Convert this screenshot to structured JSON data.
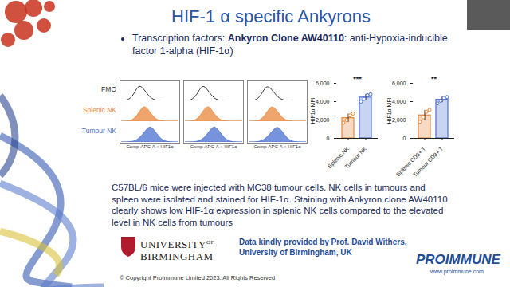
{
  "slide": {
    "title": "HIF-1 α specific Ankyrons",
    "bullet": {
      "lead": "Transcription factors: ",
      "bold": "Ankyron Clone AW40110",
      "rest": ": anti-Hypoxia-inducible factor 1-alpha (HIF-1α)"
    },
    "paragraph": "C57BL/6 mice were injected with MC38 tumour cells. NK cells in tumours and spleen were isolated and stained for HIF-1α. Staining with Ankyron clone AW40110 clearly shows low HIF-1α expression in splenic NK cells compared to the elevated level in NK cells from tumours",
    "university": {
      "line1": "UNIVERSITY",
      "superscript": "OF",
      "line2": "BIRMINGHAM"
    },
    "credit": "Data kindly provided by Prof. David Withers, University of Birmingham, UK",
    "copyright": "© Copyright ProImmune Limited 2023. All Rights Reserved",
    "logo": {
      "name": "PROIMMUNE",
      "url": "www.proimmune.com"
    }
  },
  "chart_data": [
    {
      "type": "area",
      "x_label": "Comp-APC-A :: HIF1a",
      "x": [
        0,
        1,
        2,
        3,
        4,
        5,
        6,
        7,
        8,
        9,
        10
      ],
      "xlim": [
        0,
        10
      ],
      "ylim": [
        0,
        1
      ],
      "tick_labels": false,
      "series": [
        {
          "name": "FMO",
          "color": "#333333",
          "type": "line",
          "values": [
            [
              0,
              0.02,
              0.25,
              0.95,
              0.6,
              0.15,
              0.03,
              0,
              0,
              0,
              0
            ],
            [
              0,
              0.03,
              0.3,
              0.95,
              0.55,
              0.12,
              0.02,
              0,
              0,
              0,
              0
            ],
            [
              0,
              0.02,
              0.22,
              0.9,
              0.62,
              0.18,
              0.04,
              0,
              0,
              0,
              0
            ]
          ]
        },
        {
          "name": "Splenic NK",
          "color": "#e8863a",
          "type": "area",
          "values": [
            [
              0,
              0,
              0.05,
              0.4,
              0.95,
              0.5,
              0.1,
              0.02,
              0,
              0,
              0
            ],
            [
              0,
              0,
              0.06,
              0.45,
              0.95,
              0.45,
              0.08,
              0.01,
              0,
              0,
              0
            ],
            [
              0,
              0,
              0.04,
              0.38,
              0.92,
              0.55,
              0.12,
              0.02,
              0,
              0,
              0
            ]
          ]
        },
        {
          "name": "Tumour NK",
          "color": "#4a6fd0",
          "type": "area",
          "values": [
            [
              0,
              0,
              0.02,
              0.15,
              0.5,
              0.95,
              0.55,
              0.12,
              0.02,
              0,
              0
            ],
            [
              0,
              0,
              0.02,
              0.12,
              0.45,
              0.95,
              0.6,
              0.15,
              0.02,
              0,
              0
            ],
            [
              0,
              0,
              0.03,
              0.18,
              0.55,
              0.92,
              0.5,
              0.1,
              0.01,
              0,
              0
            ]
          ]
        }
      ]
    },
    {
      "type": "bar",
      "y_label": "HIF1α MFI",
      "categories": [
        "Splenic NK",
        "Tumour NK"
      ],
      "values": [
        2200,
        4450
      ],
      "errors": [
        450,
        350
      ],
      "points": [
        [
          1700,
          2000,
          2500,
          2700
        ],
        [
          4000,
          4300,
          4700,
          4800
        ]
      ],
      "colors": [
        "#e8863a",
        "#4a6fd0"
      ],
      "ylim": [
        0,
        6000
      ],
      "yticks": [
        0,
        {
          "value": 2000,
          "label": "2,000"
        },
        {
          "value": 4000,
          "label": "4,000"
        },
        {
          "value": 6000,
          "label": "6,000"
        }
      ],
      "significance": "***"
    },
    {
      "type": "bar",
      "y_label": "HIF1α MFI",
      "categories": [
        "Splenic CD8+ T",
        "Tumour CD8+ T"
      ],
      "values": [
        2500,
        4200
      ],
      "errors": [
        550,
        300
      ],
      "points": [
        [
          1800,
          2300,
          2900,
          3100
        ],
        [
          3800,
          4100,
          4400,
          4500
        ]
      ],
      "colors": [
        "#e8863a",
        "#4a6fd0"
      ],
      "ylim": [
        0,
        6000
      ],
      "yticks": [
        0,
        {
          "value": 2000,
          "label": "2,000"
        },
        {
          "value": 4000,
          "label": "4,000"
        },
        {
          "value": 6000,
          "label": "6,000"
        }
      ],
      "significance": "**"
    }
  ]
}
